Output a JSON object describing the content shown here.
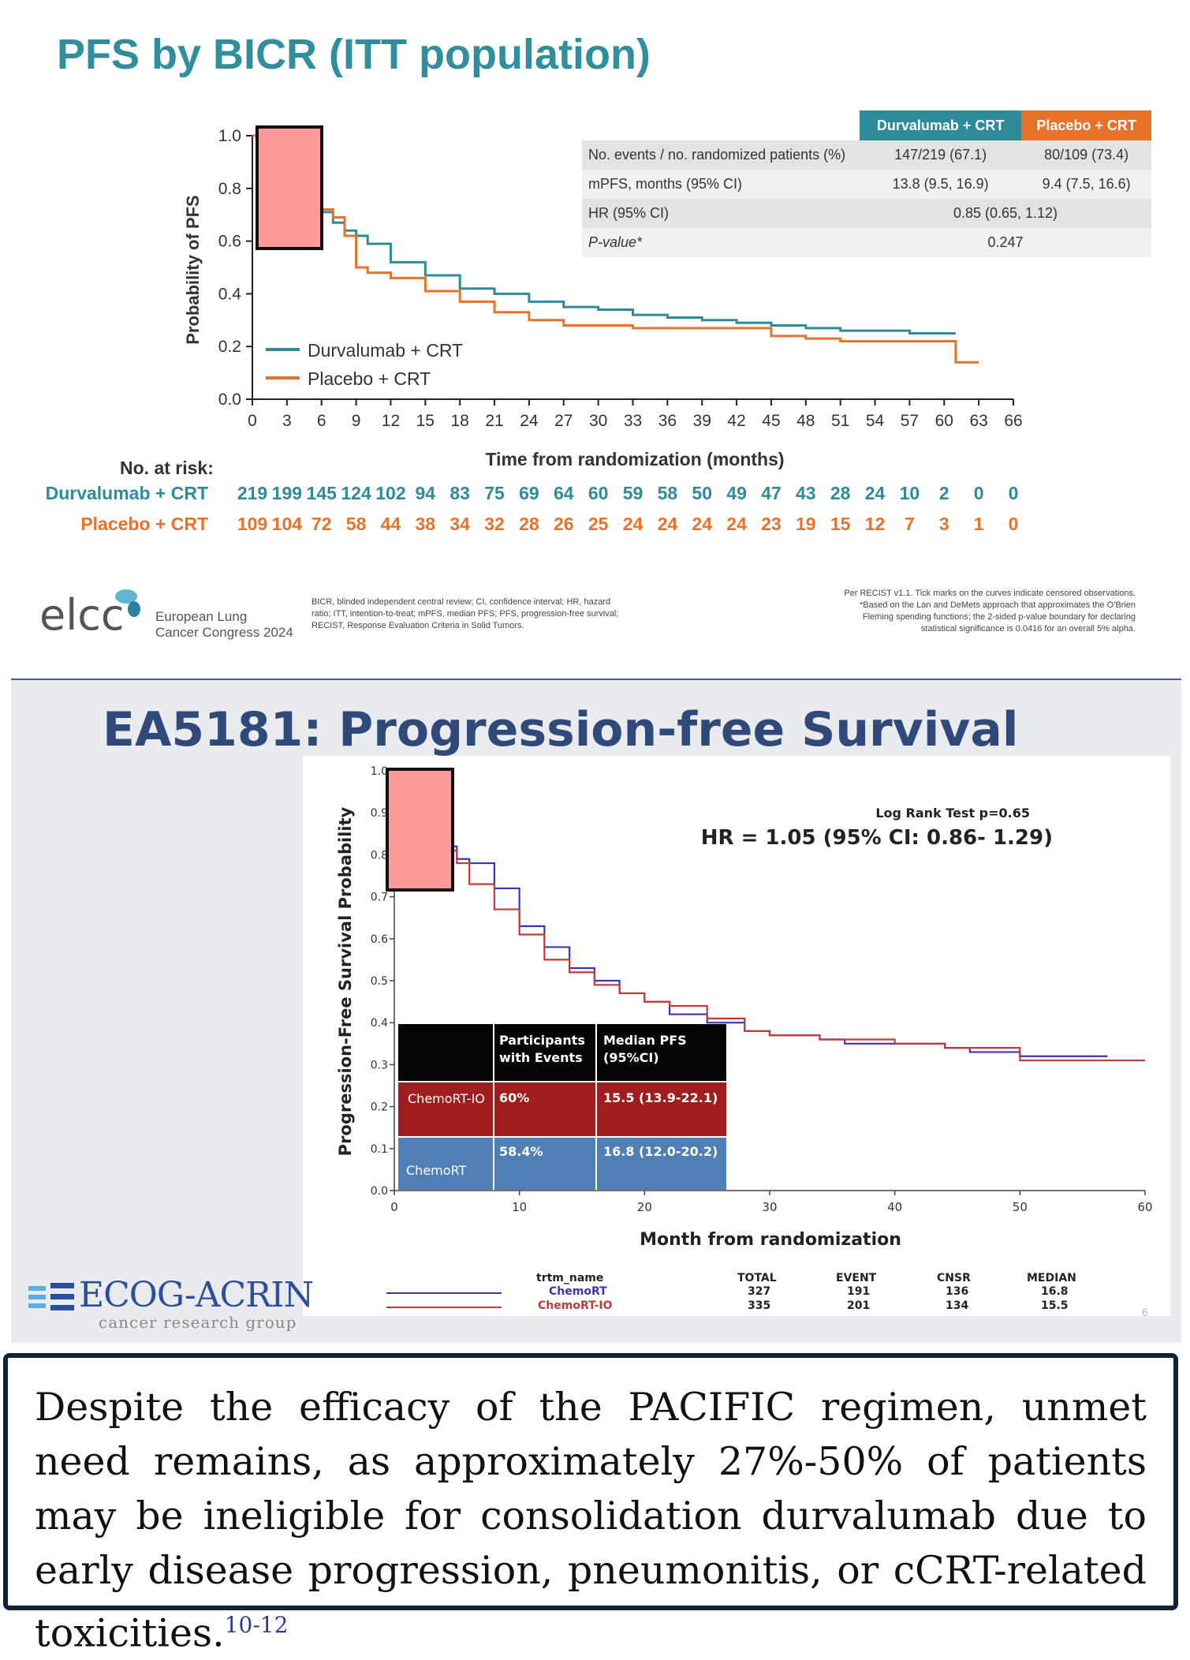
{
  "top": {
    "title": "PFS by BICR (ITT population)",
    "table": {
      "col1": "Durvalumab + CRT",
      "col2": "Placebo + CRT",
      "rows": [
        {
          "label": "No. events / no. randomized patients (%)",
          "a": "147/219 (67.1)",
          "b": "80/109 (73.4)"
        },
        {
          "label": "mPFS, months (95% CI)",
          "a": "13.8 (9.5, 16.9)",
          "b": "9.4 (7.5, 16.6)"
        },
        {
          "label": "HR (95% CI)",
          "merged": "0.85 (0.65, 1.12)"
        },
        {
          "label": "P-value*",
          "merged": "0.247"
        }
      ],
      "head_color_a": "#2e8b9a",
      "head_color_b": "#e8722a"
    },
    "at_risk_label": "No. at risk:",
    "risk_series": [
      {
        "name": "Durvalumab + CRT",
        "color": "#2e8b9a",
        "values": [
          "219",
          "199",
          "145",
          "124",
          "102",
          "94",
          "83",
          "75",
          "69",
          "64",
          "60",
          "59",
          "58",
          "50",
          "49",
          "47",
          "43",
          "28",
          "24",
          "10",
          "2",
          "0",
          "0"
        ]
      },
      {
        "name": "Placebo + CRT",
        "color": "#e8722a",
        "values": [
          "109",
          "104",
          "72",
          "58",
          "44",
          "38",
          "34",
          "32",
          "28",
          "26",
          "25",
          "24",
          "24",
          "24",
          "24",
          "23",
          "19",
          "15",
          "12",
          "7",
          "3",
          "1",
          "0"
        ]
      }
    ],
    "logo_text": "elcc",
    "logo_sub1": "European Lung",
    "logo_sub2": "Cancer Congress 2024",
    "footnote_left": "BICR, blinded independent central review; CI, confidence interval; HR, hazard ratio; ITT, intention-to-treat; mPFS, median PFS; PFS, progression-free survival; RECIST, Response Evaluation Criteria in Solid Tumors.",
    "footnote_right_1": "Per RECIST v1.1. Tick marks on the curves indicate censored observations.",
    "footnote_right_2": "*Based on the Lan and DeMets approach that approximates the O'Brien Fleming spending functions; the 2-sided p-value boundary for declaring statistical significance is 0.0416 for an overall 5% alpha."
  },
  "bottom": {
    "title": "EA5181: Progression-free Survival",
    "logrank": "Log Rank Test p=0.65",
    "hr": "HR = 1.05 (95% CI: 0.86- 1.29)",
    "table": {
      "h1": "Participants with Events",
      "h2": "Median PFS (95%CI)",
      "r1": {
        "name": "ChemoRT-IO",
        "events": "60%",
        "median": "15.5 (13.9-22.1)"
      },
      "r2": {
        "name": "ChemoRT",
        "events": "58.4%",
        "median": "16.8 (12.0-20.2)"
      }
    },
    "legend": {
      "h_name": "trtm_name",
      "h_total": "TOTAL",
      "h_event": "EVENT",
      "h_cnsr": "CNSR",
      "h_median": "MEDIAN",
      "rows": [
        {
          "name": "ChemoRT",
          "total": "327",
          "event": "191",
          "cnsr": "136",
          "median": "16.8",
          "color": "#3a35b8"
        },
        {
          "name": "ChemoRT-IO",
          "total": "335",
          "event": "201",
          "cnsr": "134",
          "median": "15.5",
          "color": "#c0393b"
        }
      ]
    },
    "logo_main": "ECOG-ACRIN",
    "logo_sub": "cancer research group",
    "page_number": "6"
  },
  "statement": {
    "text": "Despite the efficacy of the PACIFIC regimen, unmet need remains, as approximately 27%-50% of patients may be ineligible for consolidation durvalumab due to early disease progression, pneumonitis, or cCRT-related toxicities.",
    "ref": "10-12"
  },
  "chart_data": [
    {
      "type": "line",
      "title": "PFS by BICR (ITT population)",
      "xlabel": "Time from randomization (months)",
      "ylabel": "Probability of PFS",
      "xlim": [
        0,
        66
      ],
      "ylim": [
        0,
        1.0
      ],
      "xticks": [
        "0",
        "3",
        "6",
        "9",
        "12",
        "15",
        "18",
        "21",
        "24",
        "27",
        "30",
        "33",
        "36",
        "39",
        "42",
        "45",
        "48",
        "51",
        "54",
        "57",
        "60",
        "63",
        "66"
      ],
      "yticks": [
        "0.0",
        "0.2",
        "0.4",
        "0.6",
        "0.8",
        "1.0"
      ],
      "legend_position": "bottom-left",
      "series": [
        {
          "name": "Durvalumab + CRT",
          "color": "#2e8b9a",
          "x": [
            0,
            1,
            2,
            3,
            4,
            5,
            6,
            7,
            8,
            9,
            10,
            12,
            15,
            18,
            21,
            24,
            27,
            30,
            33,
            36,
            39,
            42,
            45,
            48,
            51,
            54,
            57,
            60,
            61
          ],
          "y": [
            1.0,
            0.98,
            0.96,
            0.93,
            0.85,
            0.78,
            0.71,
            0.67,
            0.64,
            0.62,
            0.59,
            0.52,
            0.47,
            0.42,
            0.4,
            0.37,
            0.35,
            0.34,
            0.32,
            0.31,
            0.3,
            0.29,
            0.28,
            0.27,
            0.26,
            0.26,
            0.25,
            0.25,
            0.25
          ]
        },
        {
          "name": "Placebo + CRT",
          "color": "#e8722a",
          "x": [
            0,
            1,
            2,
            3,
            4,
            5,
            6,
            7,
            8,
            9,
            10,
            12,
            15,
            18,
            21,
            24,
            27,
            30,
            33,
            36,
            39,
            42,
            45,
            48,
            51,
            54,
            57,
            60,
            61,
            63
          ],
          "y": [
            1.0,
            0.98,
            0.97,
            0.93,
            0.86,
            0.78,
            0.72,
            0.69,
            0.62,
            0.5,
            0.48,
            0.46,
            0.41,
            0.37,
            0.33,
            0.3,
            0.28,
            0.28,
            0.27,
            0.27,
            0.27,
            0.27,
            0.24,
            0.23,
            0.22,
            0.22,
            0.22,
            0.22,
            0.14,
            0.14
          ]
        }
      ]
    },
    {
      "type": "line",
      "title": "EA5181: Progression-free Survival",
      "xlabel": "Month from randomization",
      "ylabel": "Progression-Free Survival Probability",
      "xlim": [
        0,
        60
      ],
      "ylim": [
        0,
        1.0
      ],
      "xticks": [
        "0",
        "10",
        "20",
        "30",
        "40",
        "50",
        "60"
      ],
      "yticks": [
        "0.0",
        "0.1",
        "0.2",
        "0.3",
        "0.4",
        "0.5",
        "0.6",
        "0.7",
        "0.8",
        "0.9",
        "1.0"
      ],
      "series": [
        {
          "name": "ChemoRT",
          "color": "#3a35b8",
          "x": [
            0,
            1,
            2,
            3,
            4,
            5,
            6,
            8,
            10,
            12,
            14,
            16,
            18,
            20,
            22,
            25,
            28,
            30,
            34,
            36,
            40,
            44,
            46,
            50,
            55,
            57
          ],
          "y": [
            1.0,
            0.97,
            0.93,
            0.87,
            0.82,
            0.79,
            0.78,
            0.72,
            0.63,
            0.58,
            0.53,
            0.5,
            0.47,
            0.45,
            0.42,
            0.4,
            0.38,
            0.37,
            0.36,
            0.35,
            0.35,
            0.34,
            0.33,
            0.32,
            0.32,
            0.32
          ]
        },
        {
          "name": "ChemoRT-IO",
          "color": "#c0393b",
          "x": [
            0,
            1,
            2,
            3,
            4,
            5,
            6,
            8,
            10,
            12,
            14,
            16,
            18,
            20,
            22,
            25,
            28,
            30,
            34,
            36,
            40,
            44,
            46,
            50,
            55,
            60
          ],
          "y": [
            1.0,
            0.97,
            0.93,
            0.86,
            0.81,
            0.78,
            0.73,
            0.67,
            0.61,
            0.55,
            0.52,
            0.49,
            0.47,
            0.45,
            0.44,
            0.41,
            0.38,
            0.37,
            0.36,
            0.36,
            0.35,
            0.34,
            0.34,
            0.31,
            0.31,
            0.31
          ]
        }
      ]
    }
  ]
}
